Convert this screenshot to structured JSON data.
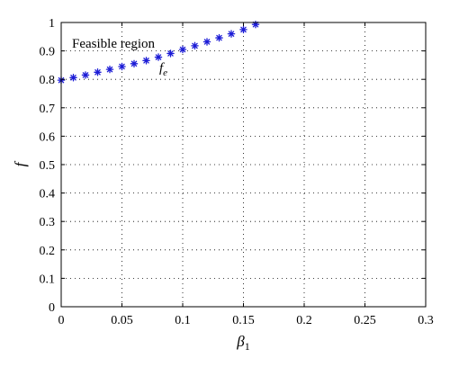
{
  "chart_data": {
    "type": "scatter",
    "title": "",
    "xlabel": "β1",
    "xlabel_base": "β",
    "xlabel_sub": "1",
    "ylabel": "f",
    "xlim": [
      0,
      0.3
    ],
    "ylim": [
      0,
      1
    ],
    "xticks": [
      "0",
      "0.05",
      "0.1",
      "0.15",
      "0.2",
      "0.25",
      "0.3"
    ],
    "xtick_values": [
      0,
      0.05,
      0.1,
      0.15,
      0.2,
      0.25,
      0.3
    ],
    "yticks": [
      "0",
      "0.1",
      "0.2",
      "0.3",
      "0.4",
      "0.5",
      "0.6",
      "0.7",
      "0.8",
      "0.9",
      "1"
    ],
    "ytick_values": [
      0,
      0.1,
      0.2,
      0.3,
      0.4,
      0.5,
      0.6,
      0.7,
      0.8,
      0.9,
      1
    ],
    "grid": true,
    "marker_color": "#1c1cd6",
    "series": [
      {
        "marker": "asterisk",
        "x": [
          0,
          0.01,
          0.02,
          0.03,
          0.04,
          0.05,
          0.06,
          0.07,
          0.08,
          0.09,
          0.1,
          0.11,
          0.12,
          0.13,
          0.14,
          0.15,
          0.16
        ],
        "y": [
          0.797,
          0.806,
          0.815,
          0.825,
          0.835,
          0.845,
          0.855,
          0.866,
          0.878,
          0.891,
          0.905,
          0.918,
          0.932,
          0.946,
          0.96,
          0.975,
          0.993
        ]
      }
    ],
    "annotations": {
      "region_label": "Feasible region",
      "curve_label_base": "f",
      "curve_label_sub": "e"
    }
  }
}
